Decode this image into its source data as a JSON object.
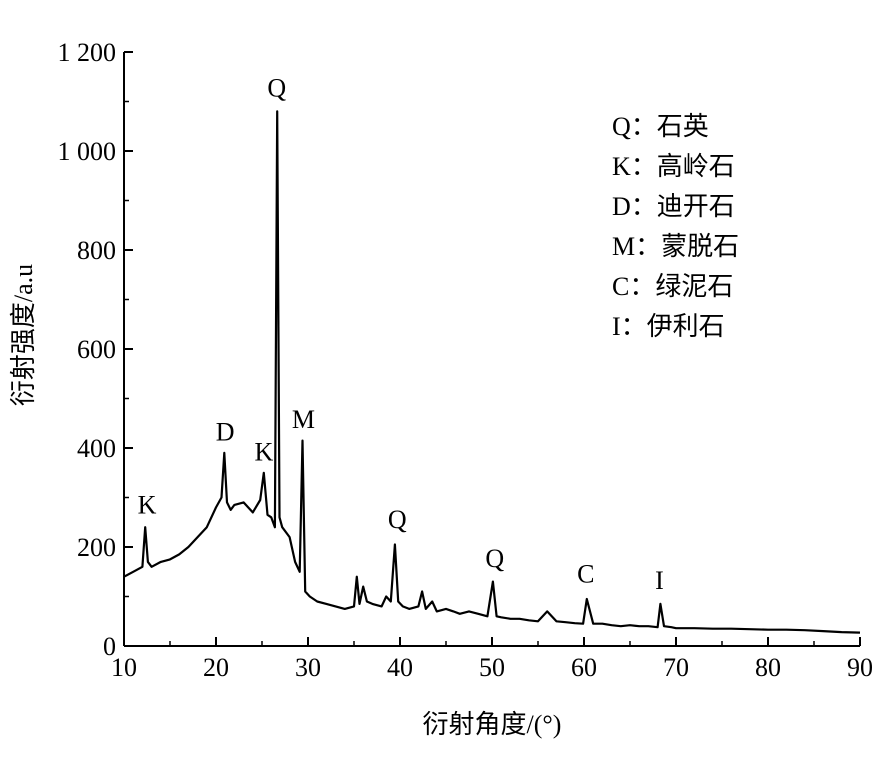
{
  "chart_data": {
    "type": "line",
    "xlabel": "衍射角度/(°)",
    "ylabel": "衍射强度/a.u",
    "xlim": [
      10,
      90
    ],
    "ylim": [
      0,
      1200
    ],
    "x_ticks": [
      10,
      20,
      30,
      40,
      50,
      60,
      70,
      80,
      90
    ],
    "y_ticks": [
      0,
      200,
      400,
      600,
      800,
      1000,
      1200
    ],
    "y_tick_labels": [
      "0",
      "200",
      "400",
      "600",
      "800",
      "1 000",
      "1 200"
    ],
    "grid": false,
    "series": [
      {
        "x": [
          10,
          11,
          12,
          12.3,
          12.6,
          13,
          14,
          15,
          16,
          17,
          18,
          19,
          20,
          20.6,
          20.9,
          21.2,
          21.6,
          22,
          23,
          24,
          24.8,
          25.2,
          25.6,
          26,
          26.4,
          26.65,
          26.9,
          27.2,
          28,
          28.6,
          29.1,
          29.4,
          29.7,
          30.2,
          31,
          32,
          33,
          34,
          35,
          35.3,
          35.6,
          36,
          36.4,
          37,
          38,
          38.5,
          39,
          39.45,
          39.8,
          40.3,
          41,
          42,
          42.4,
          42.8,
          43.5,
          44,
          45,
          45.8,
          46.5,
          47.5,
          48.5,
          49.5,
          50.1,
          50.5,
          51,
          52,
          53,
          54,
          55,
          56,
          57,
          58,
          59,
          59.9,
          60.3,
          61,
          62,
          63,
          64,
          65,
          66,
          67,
          68,
          68.3,
          68.7,
          69.5,
          70,
          72,
          74,
          76,
          78,
          80,
          82,
          84,
          86,
          88,
          90
        ],
        "y": [
          140,
          150,
          160,
          240,
          170,
          160,
          170,
          175,
          185,
          200,
          220,
          240,
          280,
          300,
          390,
          290,
          275,
          285,
          290,
          270,
          295,
          350,
          265,
          260,
          240,
          1080,
          260,
          240,
          220,
          170,
          150,
          415,
          110,
          100,
          90,
          85,
          80,
          75,
          80,
          140,
          85,
          120,
          90,
          85,
          80,
          100,
          90,
          205,
          90,
          80,
          75,
          80,
          110,
          75,
          90,
          70,
          75,
          70,
          65,
          70,
          65,
          60,
          130,
          60,
          58,
          55,
          55,
          52,
          50,
          70,
          50,
          48,
          46,
          45,
          95,
          45,
          45,
          42,
          40,
          42,
          40,
          40,
          38,
          85,
          40,
          38,
          36,
          36,
          35,
          35,
          34,
          33,
          33,
          32,
          30,
          28,
          27
        ]
      }
    ],
    "annotations": [
      {
        "text": "K",
        "x": 12.5,
        "y": 268
      },
      {
        "text": "D",
        "x": 21.0,
        "y": 415
      },
      {
        "text": "K",
        "x": 25.2,
        "y": 375
      },
      {
        "text": "Q",
        "x": 26.6,
        "y": 1110
      },
      {
        "text": "M",
        "x": 29.5,
        "y": 440
      },
      {
        "text": "Q",
        "x": 39.7,
        "y": 238
      },
      {
        "text": "Q",
        "x": 50.3,
        "y": 160
      },
      {
        "text": "C",
        "x": 60.2,
        "y": 128
      },
      {
        "text": "I",
        "x": 68.2,
        "y": 115
      }
    ],
    "legend": {
      "placement": "top-right",
      "items": [
        "Q：石英",
        "K：高岭石",
        "D：迪开石",
        "M：蒙脱石",
        "C：绿泥石",
        "I：伊利石"
      ]
    },
    "line_color": "#000000"
  }
}
